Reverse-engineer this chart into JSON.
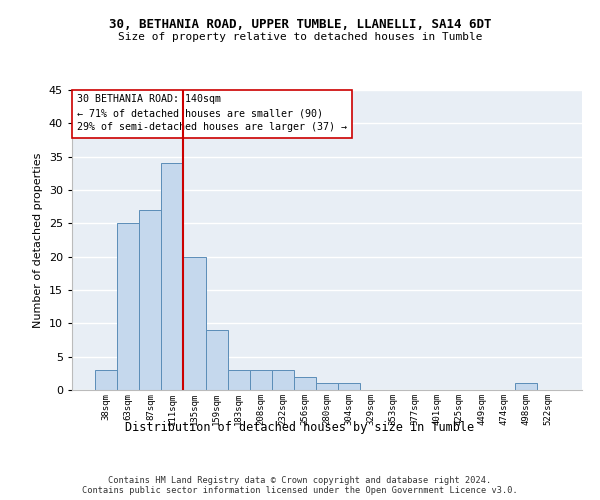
{
  "title1": "30, BETHANIA ROAD, UPPER TUMBLE, LLANELLI, SA14 6DT",
  "title2": "Size of property relative to detached houses in Tumble",
  "xlabel": "Distribution of detached houses by size in Tumble",
  "ylabel": "Number of detached properties",
  "bar_color": "#c5d8ed",
  "bar_edge_color": "#5b8db8",
  "background_color": "#e8eef5",
  "grid_color": "#ffffff",
  "categories": [
    "38sqm",
    "63sqm",
    "87sqm",
    "111sqm",
    "135sqm",
    "159sqm",
    "183sqm",
    "208sqm",
    "232sqm",
    "256sqm",
    "280sqm",
    "304sqm",
    "329sqm",
    "353sqm",
    "377sqm",
    "401sqm",
    "425sqm",
    "449sqm",
    "474sqm",
    "498sqm",
    "522sqm"
  ],
  "values": [
    3,
    25,
    27,
    34,
    20,
    9,
    3,
    3,
    3,
    2,
    1,
    1,
    0,
    0,
    0,
    0,
    0,
    0,
    0,
    1,
    0
  ],
  "vline_color": "#cc0000",
  "vline_index": 4,
  "annotation_line1": "30 BETHANIA ROAD: 140sqm",
  "annotation_line2": "← 71% of detached houses are smaller (90)",
  "annotation_line3": "29% of semi-detached houses are larger (37) →",
  "annotation_box_color": "#ffffff",
  "annotation_box_edge_color": "#cc0000",
  "footer_text": "Contains HM Land Registry data © Crown copyright and database right 2024.\nContains public sector information licensed under the Open Government Licence v3.0.",
  "ylim": [
    0,
    45
  ],
  "yticks": [
    0,
    5,
    10,
    15,
    20,
    25,
    30,
    35,
    40,
    45
  ]
}
